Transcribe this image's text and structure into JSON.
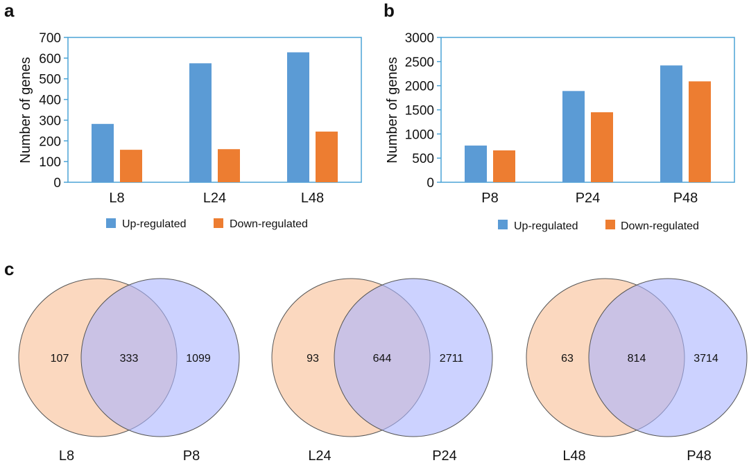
{
  "panels": {
    "a": "a",
    "b": "b",
    "c": "c"
  },
  "colors": {
    "up": "#5b9bd5",
    "down": "#ed7d31",
    "axis": "#4aa3d6",
    "venn_left": "#f9cba9",
    "venn_right": "#aab4ff",
    "venn_stroke": "#555555"
  },
  "legend": {
    "up": "Up-regulated",
    "down": "Down-regulated"
  },
  "chart_data": [
    {
      "type": "bar",
      "panel": "a",
      "ylabel": "Number of genes",
      "xlabel": "",
      "categories": [
        "L8",
        "L24",
        "L48"
      ],
      "ylim": [
        0,
        700
      ],
      "yticks": [
        0,
        100,
        200,
        300,
        400,
        500,
        600,
        700
      ],
      "series": [
        {
          "name": "Up-regulated",
          "values": [
            282,
            575,
            628
          ]
        },
        {
          "name": "Down-regulated",
          "values": [
            157,
            160,
            245
          ]
        }
      ],
      "legend_position": "bottom"
    },
    {
      "type": "bar",
      "panel": "b",
      "ylabel": "Number of genes",
      "xlabel": "",
      "categories": [
        "P8",
        "P24",
        "P48"
      ],
      "ylim": [
        0,
        3000
      ],
      "yticks": [
        0,
        500,
        1000,
        1500,
        2000,
        2500,
        3000
      ],
      "series": [
        {
          "name": "Up-regulated",
          "values": [
            760,
            1890,
            2420
          ]
        },
        {
          "name": "Down-regulated",
          "values": [
            660,
            1450,
            2090
          ]
        }
      ],
      "legend_position": "bottom"
    }
  ],
  "venn": [
    {
      "left_name": "L8",
      "right_name": "P8",
      "left_only": "107",
      "overlap": "333",
      "right_only": "1099"
    },
    {
      "left_name": "L24",
      "right_name": "P24",
      "left_only": "93",
      "overlap": "644",
      "right_only": "2711"
    },
    {
      "left_name": "L48",
      "right_name": "P48",
      "left_only": "63",
      "overlap": "814",
      "right_only": "3714"
    }
  ]
}
